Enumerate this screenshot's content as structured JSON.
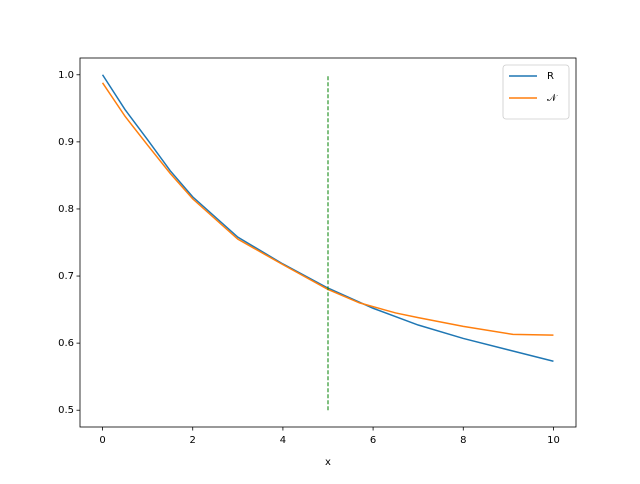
{
  "chart_data": {
    "type": "line",
    "xlabel": "x",
    "xlim": [
      -0.5,
      10.5
    ],
    "xticks": [
      0,
      2,
      4,
      6,
      8,
      10
    ],
    "ylim": [
      0.475,
      1.025
    ],
    "yticks": [
      0.5,
      0.6,
      0.7,
      0.8,
      0.9,
      {
        "value": 1.0,
        "label": "1.0"
      }
    ],
    "legend": "upper right",
    "series": [
      {
        "name": "R",
        "color": "#1f77b4",
        "x": [
          0,
          0.5,
          1,
          1.5,
          2,
          3,
          4,
          5,
          6,
          7,
          8,
          9,
          10
        ],
        "values": [
          1.0,
          0.948,
          0.903,
          0.857,
          0.818,
          0.758,
          0.718,
          0.682,
          0.652,
          0.627,
          0.607,
          0.59,
          0.573
        ]
      },
      {
        "name": "𝒩",
        "color": "#ff7f0e",
        "x": [
          0,
          0.5,
          1,
          1.5,
          2,
          3,
          4,
          5,
          5.7,
          6.5,
          7,
          8,
          9.1,
          10
        ],
        "values": [
          0.988,
          0.938,
          0.895,
          0.853,
          0.815,
          0.755,
          0.717,
          0.68,
          0.66,
          0.645,
          0.638,
          0.625,
          0.613,
          0.612
        ]
      }
    ],
    "vlines": [
      {
        "x": 5,
        "ymin": 0.5,
        "ymax": 1.0,
        "color": "green"
      }
    ]
  }
}
